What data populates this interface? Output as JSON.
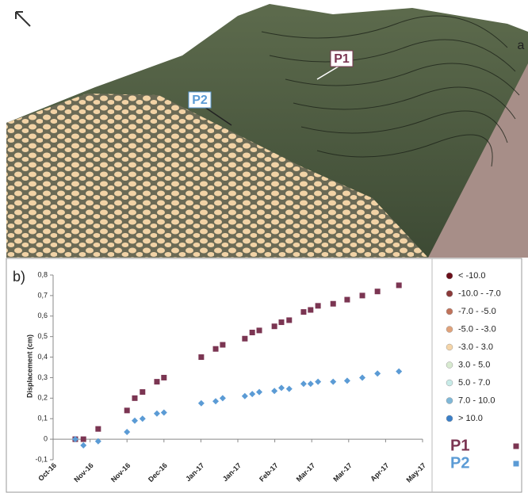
{
  "map_panel": {
    "panel_label": "a",
    "markers": [
      "P1",
      "P2"
    ]
  },
  "chart_data": {
    "type": "scatter",
    "panel_label": "b)",
    "y_label": "Displacement (cm)",
    "xlim": [
      0,
      10
    ],
    "xticks": [
      {
        "value": 0,
        "label": "Oct-16"
      },
      {
        "value": 1,
        "label": "Nov-16"
      },
      {
        "value": 2,
        "label": "Nov-16"
      },
      {
        "value": 3,
        "label": "Dec-16"
      },
      {
        "value": 4,
        "label": "Jan-17"
      },
      {
        "value": 5,
        "label": "Jan-17"
      },
      {
        "value": 6,
        "label": "Feb-17"
      },
      {
        "value": 7,
        "label": "Mar-17"
      },
      {
        "value": 8,
        "label": "Mar-17"
      },
      {
        "value": 9,
        "label": "Apr-17"
      },
      {
        "value": 10,
        "label": "May-17"
      }
    ],
    "ylim": [
      -0.1,
      0.8
    ],
    "yticks": [
      {
        "value": -0.1,
        "label": "-0,1"
      },
      {
        "value": 0,
        "label": "0"
      },
      {
        "value": 0.1,
        "label": "0,1"
      },
      {
        "value": 0.2,
        "label": "0,2"
      },
      {
        "value": 0.3,
        "label": "0,3"
      },
      {
        "value": 0.4,
        "label": "0,4"
      },
      {
        "value": 0.5,
        "label": "0,5"
      },
      {
        "value": 0.6,
        "label": "0,6"
      },
      {
        "value": 0.7,
        "label": "0,7"
      },
      {
        "value": 0.8,
        "label": "0,8"
      }
    ],
    "series": [
      {
        "name": "P1",
        "color": "#7b3552",
        "marker": "square",
        "x": [
          0.6,
          0.82,
          1.22,
          2.0,
          2.21,
          2.42,
          2.81,
          3.0,
          4.01,
          4.4,
          4.59,
          5.19,
          5.39,
          5.58,
          5.99,
          6.18,
          6.39,
          6.78,
          6.97,
          7.17,
          7.58,
          7.96,
          8.37,
          8.78,
          9.36
        ],
        "values": [
          0,
          0,
          0.05,
          0.14,
          0.2,
          0.23,
          0.28,
          0.3,
          0.4,
          0.44,
          0.46,
          0.49,
          0.52,
          0.53,
          0.55,
          0.57,
          0.58,
          0.62,
          0.63,
          0.65,
          0.66,
          0.68,
          0.7,
          0.72,
          0.75
        ]
      },
      {
        "name": "P2",
        "color": "#5b9bd5",
        "marker": "diamond",
        "x": [
          0.6,
          0.82,
          1.22,
          2.0,
          2.21,
          2.42,
          2.81,
          3.0,
          4.01,
          4.4,
          4.59,
          5.19,
          5.39,
          5.58,
          5.99,
          6.18,
          6.39,
          6.78,
          6.97,
          7.17,
          7.58,
          7.96,
          8.37,
          8.78,
          9.36
        ],
        "values": [
          0,
          -0.03,
          -0.01,
          0.035,
          0.09,
          0.1,
          0.125,
          0.13,
          0.175,
          0.185,
          0.2,
          0.21,
          0.22,
          0.23,
          0.235,
          0.25,
          0.245,
          0.27,
          0.27,
          0.28,
          0.28,
          0.285,
          0.3,
          0.32,
          0.33
        ]
      }
    ],
    "color_classes": [
      {
        "label": "< -10.0",
        "color": "#6b0f1a"
      },
      {
        "label": "-10.0 - -7.0",
        "color": "#8b3a3a"
      },
      {
        "label": "-7.0 - -5.0",
        "color": "#c0725a"
      },
      {
        "label": "-5.0 - -3.0",
        "color": "#e0a27a"
      },
      {
        "label": "-3.0 - 3.0",
        "color": "#f5d5a8"
      },
      {
        "label": "3.0 - 5.0",
        "color": "#d8ead0"
      },
      {
        "label": "5.0 - 7.0",
        "color": "#c8ebe8"
      },
      {
        "label": "7.0 - 10.0",
        "color": "#7fb8d8"
      },
      {
        "label": "> 10.0",
        "color": "#3a7fc8"
      }
    ]
  }
}
